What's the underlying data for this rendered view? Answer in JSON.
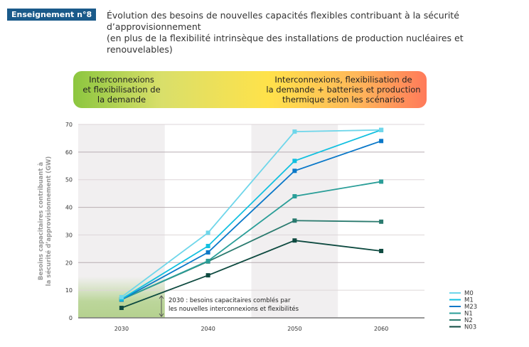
{
  "badge": "Enseignement n°8",
  "title_line1": "Évolution des besoins de nouvelles capacités flexibles contribuant à la sécurité d’approvisionnement",
  "title_line2": "(en plus de la flexibilité intrinsèque des installations de production nucléaires et renouvelables)",
  "banner": {
    "left": [
      "Interconnexions",
      "et flexibilisation de",
      "la demande"
    ],
    "right": [
      "Interconnexions, flexibilisation de",
      "la demande + batteries et production",
      "thermique selon les scénarios"
    ]
  },
  "annotation": [
    "2030 : besoins capacitaires comblés par",
    "les nouvelles interconnexions et flexibilités"
  ],
  "chart_data": {
    "type": "line",
    "ylabel": [
      "Besoins capacitaires contribuant à",
      "la sécurité d’approvisionnement (GW)"
    ],
    "categories": [
      "2030",
      "2040",
      "2050",
      "2060"
    ],
    "ylim": [
      0,
      70
    ],
    "yticks": [
      0,
      10,
      20,
      30,
      40,
      50,
      60,
      70
    ],
    "grid": true,
    "legend_placement": "bottom-right",
    "series": [
      {
        "name": "M0",
        "color": "#6fd6ea",
        "values": [
          7.5,
          30.8,
          67.4,
          68
        ]
      },
      {
        "name": "M1",
        "color": "#12c0e0",
        "values": [
          6.8,
          26,
          56.8,
          68
        ]
      },
      {
        "name": "M23",
        "color": "#0a78c8",
        "values": [
          6.6,
          23.7,
          53.2,
          64
        ]
      },
      {
        "name": "N1",
        "color": "#2a9e98",
        "values": [
          6.6,
          20.6,
          44,
          49.3
        ]
      },
      {
        "name": "N2",
        "color": "#2a7a6e",
        "values": [
          6.6,
          20.4,
          35.2,
          34.8
        ]
      },
      {
        "name": "N03",
        "color": "#0e4a40",
        "values": [
          3.6,
          15.4,
          28,
          24.2
        ]
      }
    ]
  }
}
